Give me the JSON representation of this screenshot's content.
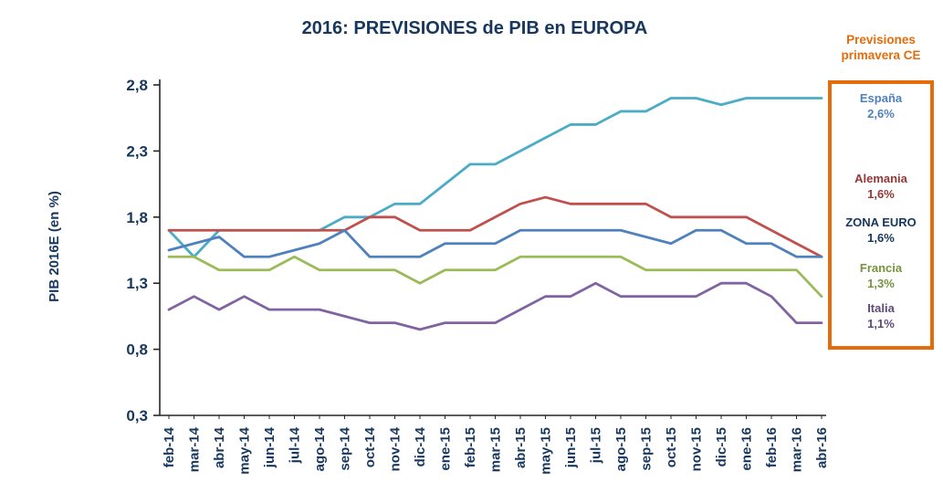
{
  "title": "2016: PREVISIONES de PIB en EUROPA",
  "legend_header": "Previsiones primavera CE",
  "colors": {
    "title_text": "#17375E",
    "legend_header_text": "#E46C0A",
    "legend_box_border": "#E46C0A",
    "axis_line": "#262626",
    "axis_text": "#17375E"
  },
  "chart_data": {
    "type": "line",
    "title": "2016: PREVISIONES de PIB en EUROPA",
    "xlabel": "",
    "ylabel": "PIB 2016E (en %)",
    "ylim": [
      0.3,
      2.8
    ],
    "grid": false,
    "legend_position": "right",
    "yticks": [
      {
        "value": 0.3,
        "label": "0,3"
      },
      {
        "value": 0.8,
        "label": "0,8"
      },
      {
        "value": 1.3,
        "label": "1,3"
      },
      {
        "value": 1.8,
        "label": "1,8"
      },
      {
        "value": 2.3,
        "label": "2,3"
      },
      {
        "value": 2.8,
        "label": "2,8"
      }
    ],
    "x": [
      "feb-14",
      "mar-14",
      "abr-14",
      "may-14",
      "jun-14",
      "jul-14",
      "ago-14",
      "sep-14",
      "oct-14",
      "nov-14",
      "dic-14",
      "ene-15",
      "feb-15",
      "mar-15",
      "abr-15",
      "may-15",
      "jun-15",
      "jul-15",
      "ago-15",
      "sep-15",
      "oct-15",
      "nov-15",
      "dic-15",
      "ene-16",
      "feb-16",
      "mar-16",
      "abr-16"
    ],
    "series": [
      {
        "id": "espana",
        "name": "España",
        "forecast_label": "2,6%",
        "color": "#4BACC6",
        "text_color": "#4F81BD",
        "values": [
          1.7,
          1.5,
          1.7,
          1.7,
          1.7,
          1.7,
          1.7,
          1.8,
          1.8,
          1.9,
          1.9,
          2.05,
          2.2,
          2.2,
          2.3,
          2.4,
          2.5,
          2.5,
          2.6,
          2.6,
          2.7,
          2.7,
          2.65,
          2.7,
          2.7,
          2.7,
          2.7
        ]
      },
      {
        "id": "alemania",
        "name": "Alemania",
        "forecast_label": "1,6%",
        "color": "#C0504D",
        "text_color": "#953735",
        "values": [
          1.7,
          1.7,
          1.7,
          1.7,
          1.7,
          1.7,
          1.7,
          1.7,
          1.8,
          1.8,
          1.7,
          1.7,
          1.7,
          1.8,
          1.9,
          1.95,
          1.9,
          1.9,
          1.9,
          1.9,
          1.8,
          1.8,
          1.8,
          1.8,
          1.7,
          1.6,
          1.5
        ]
      },
      {
        "id": "zona_euro",
        "name": "ZONA EURO",
        "forecast_label": "1,6%",
        "color": "#4F81BD",
        "text_color": "#17375E",
        "values": [
          1.55,
          1.6,
          1.65,
          1.5,
          1.5,
          1.55,
          1.6,
          1.7,
          1.5,
          1.5,
          1.5,
          1.6,
          1.6,
          1.6,
          1.7,
          1.7,
          1.7,
          1.7,
          1.7,
          1.65,
          1.6,
          1.7,
          1.7,
          1.6,
          1.6,
          1.5,
          1.5
        ]
      },
      {
        "id": "francia",
        "name": "Francia",
        "forecast_label": "1,3%",
        "color": "#9BBB59",
        "text_color": "#77933C",
        "values": [
          1.5,
          1.5,
          1.4,
          1.4,
          1.4,
          1.5,
          1.4,
          1.4,
          1.4,
          1.4,
          1.3,
          1.4,
          1.4,
          1.4,
          1.5,
          1.5,
          1.5,
          1.5,
          1.5,
          1.4,
          1.4,
          1.4,
          1.4,
          1.4,
          1.4,
          1.4,
          1.2
        ]
      },
      {
        "id": "italia",
        "name": "Italia",
        "forecast_label": "1,1%",
        "color": "#8064A2",
        "text_color": "#604A7B",
        "values": [
          1.1,
          1.2,
          1.1,
          1.2,
          1.1,
          1.1,
          1.1,
          1.05,
          1.0,
          1.0,
          0.95,
          1.0,
          1.0,
          1.0,
          1.1,
          1.2,
          1.2,
          1.3,
          1.2,
          1.2,
          1.2,
          1.2,
          1.3,
          1.3,
          1.2,
          1.0,
          1.0
        ]
      }
    ]
  }
}
